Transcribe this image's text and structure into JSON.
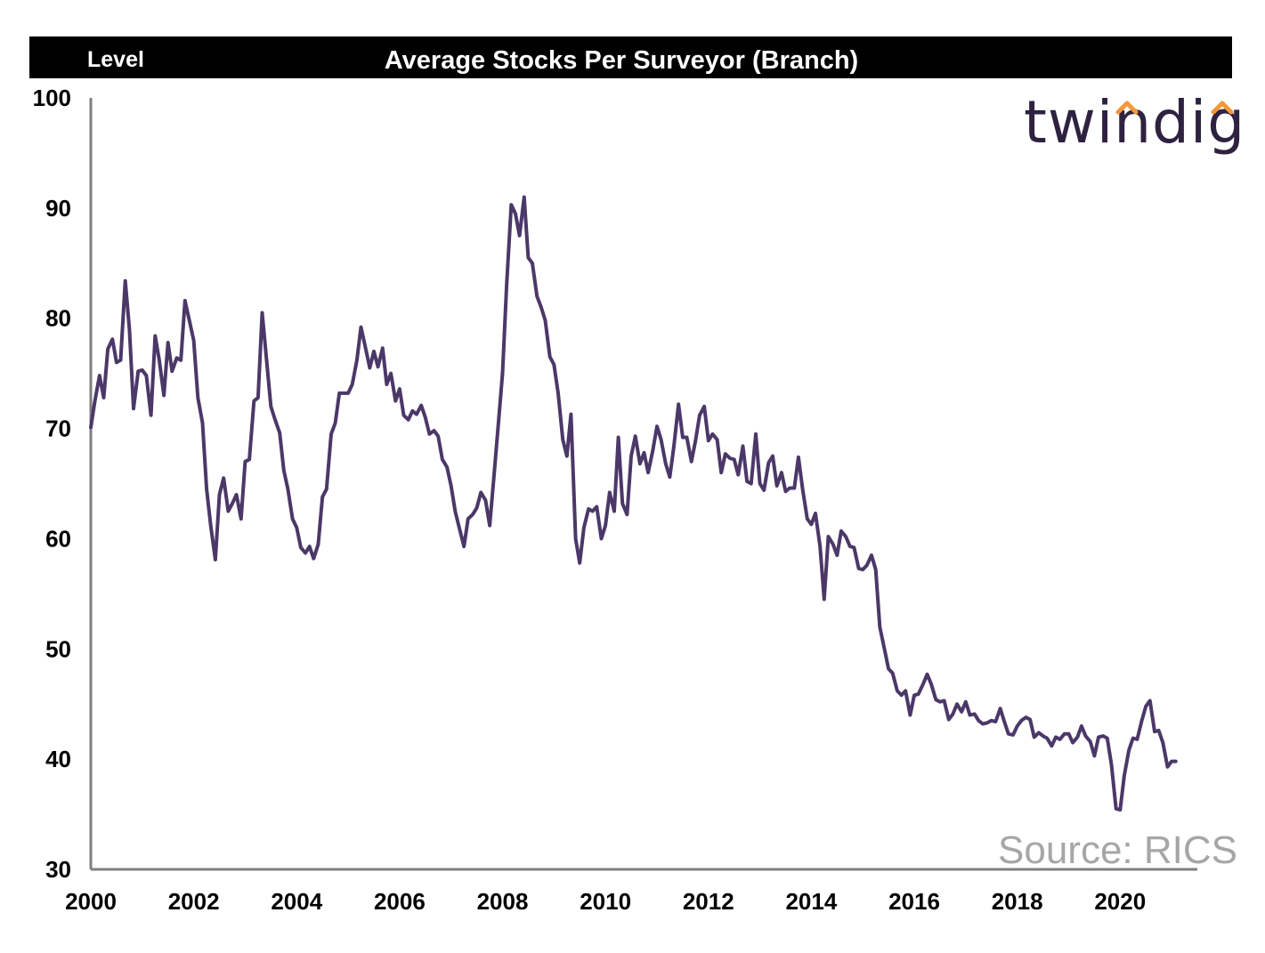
{
  "chart_data": {
    "type": "line",
    "title": "Average Stocks Per Surveyor (Branch)",
    "ylabel": "Level",
    "xlabel": "",
    "xlim": [
      2000,
      2021.5
    ],
    "ylim": [
      30,
      100
    ],
    "xticks": [
      2000,
      2002,
      2004,
      2006,
      2008,
      2010,
      2012,
      2014,
      2016,
      2018,
      2020
    ],
    "xtick_labels": [
      "2000",
      "2002",
      "2004",
      "2006",
      "2008",
      "2010",
      "2012",
      "2014",
      "2016",
      "2018",
      "2020"
    ],
    "yticks": [
      30,
      40,
      50,
      60,
      70,
      80,
      90,
      100
    ],
    "ytick_labels": [
      "30",
      "40",
      "50",
      "60",
      "70",
      "80",
      "90",
      "100"
    ],
    "grid": false,
    "legend": "none",
    "series": [
      {
        "color": "#4b3868",
        "points": [
          [
            2000.0,
            70.1
          ],
          [
            2000.08,
            72.5
          ],
          [
            2000.17,
            74.8
          ],
          [
            2000.25,
            72.8
          ],
          [
            2000.33,
            77.2
          ],
          [
            2000.42,
            78.1
          ],
          [
            2000.5,
            76.0
          ],
          [
            2000.58,
            76.2
          ],
          [
            2000.67,
            83.4
          ],
          [
            2000.75,
            79.0
          ],
          [
            2000.83,
            71.8
          ],
          [
            2000.92,
            75.2
          ],
          [
            2001.0,
            75.3
          ],
          [
            2001.08,
            74.8
          ],
          [
            2001.17,
            71.2
          ],
          [
            2001.25,
            78.4
          ],
          [
            2001.33,
            76.2
          ],
          [
            2001.42,
            73.0
          ],
          [
            2001.5,
            77.8
          ],
          [
            2001.58,
            75.2
          ],
          [
            2001.67,
            76.4
          ],
          [
            2001.75,
            76.2
          ],
          [
            2001.83,
            81.6
          ],
          [
            2001.92,
            79.7
          ],
          [
            2002.0,
            78.0
          ],
          [
            2002.08,
            72.8
          ],
          [
            2002.17,
            70.5
          ],
          [
            2002.25,
            64.5
          ],
          [
            2002.33,
            61.2
          ],
          [
            2002.42,
            58.1
          ],
          [
            2002.5,
            64.0
          ],
          [
            2002.58,
            65.5
          ],
          [
            2002.67,
            62.5
          ],
          [
            2002.75,
            63.2
          ],
          [
            2002.83,
            64.0
          ],
          [
            2002.92,
            61.8
          ],
          [
            2003.0,
            67.0
          ],
          [
            2003.08,
            67.2
          ],
          [
            2003.17,
            72.5
          ],
          [
            2003.25,
            72.8
          ],
          [
            2003.33,
            80.5
          ],
          [
            2003.42,
            76.0
          ],
          [
            2003.5,
            72.0
          ],
          [
            2003.58,
            70.8
          ],
          [
            2003.67,
            69.6
          ],
          [
            2003.75,
            66.2
          ],
          [
            2003.83,
            64.5
          ],
          [
            2003.92,
            61.8
          ],
          [
            2004.0,
            61.0
          ],
          [
            2004.08,
            59.2
          ],
          [
            2004.17,
            58.7
          ],
          [
            2004.25,
            59.3
          ],
          [
            2004.33,
            58.2
          ],
          [
            2004.42,
            59.5
          ],
          [
            2004.5,
            63.8
          ],
          [
            2004.58,
            64.5
          ],
          [
            2004.67,
            69.5
          ],
          [
            2004.75,
            70.5
          ],
          [
            2004.83,
            73.2
          ],
          [
            2004.92,
            73.2
          ],
          [
            2005.0,
            73.2
          ],
          [
            2005.08,
            74.0
          ],
          [
            2005.17,
            76.2
          ],
          [
            2005.25,
            79.2
          ],
          [
            2005.33,
            77.5
          ],
          [
            2005.42,
            75.5
          ],
          [
            2005.5,
            77.0
          ],
          [
            2005.58,
            75.6
          ],
          [
            2005.67,
            77.3
          ],
          [
            2005.75,
            74.0
          ],
          [
            2005.83,
            75.0
          ],
          [
            2005.92,
            72.5
          ],
          [
            2006.0,
            73.6
          ],
          [
            2006.08,
            71.2
          ],
          [
            2006.17,
            70.8
          ],
          [
            2006.25,
            71.6
          ],
          [
            2006.33,
            71.3
          ],
          [
            2006.42,
            72.1
          ],
          [
            2006.5,
            71.0
          ],
          [
            2006.58,
            69.5
          ],
          [
            2006.67,
            69.8
          ],
          [
            2006.75,
            69.3
          ],
          [
            2006.83,
            67.2
          ],
          [
            2006.92,
            66.5
          ],
          [
            2007.0,
            64.8
          ],
          [
            2007.08,
            62.5
          ],
          [
            2007.17,
            60.8
          ],
          [
            2007.25,
            59.3
          ],
          [
            2007.33,
            61.8
          ],
          [
            2007.42,
            62.2
          ],
          [
            2007.5,
            62.8
          ],
          [
            2007.58,
            64.2
          ],
          [
            2007.67,
            63.5
          ],
          [
            2007.75,
            61.2
          ],
          [
            2007.83,
            65.5
          ],
          [
            2007.92,
            70.5
          ],
          [
            2008.0,
            75.0
          ],
          [
            2008.08,
            83.0
          ],
          [
            2008.17,
            90.3
          ],
          [
            2008.25,
            89.5
          ],
          [
            2008.33,
            87.5
          ],
          [
            2008.42,
            91.0
          ],
          [
            2008.5,
            85.5
          ],
          [
            2008.58,
            85.0
          ],
          [
            2008.67,
            82.0
          ],
          [
            2008.75,
            81.0
          ],
          [
            2008.83,
            79.8
          ],
          [
            2008.92,
            76.5
          ],
          [
            2009.0,
            75.8
          ],
          [
            2009.08,
            73.2
          ],
          [
            2009.17,
            69.0
          ],
          [
            2009.25,
            67.5
          ],
          [
            2009.33,
            71.3
          ],
          [
            2009.42,
            60.0
          ],
          [
            2009.5,
            57.8
          ],
          [
            2009.58,
            61.0
          ],
          [
            2009.67,
            62.7
          ],
          [
            2009.75,
            62.5
          ],
          [
            2009.83,
            62.9
          ],
          [
            2009.92,
            60.0
          ],
          [
            2010.0,
            61.2
          ],
          [
            2010.08,
            64.2
          ],
          [
            2010.17,
            62.5
          ],
          [
            2010.25,
            69.2
          ],
          [
            2010.33,
            63.2
          ],
          [
            2010.42,
            62.2
          ],
          [
            2010.5,
            67.5
          ],
          [
            2010.58,
            69.3
          ],
          [
            2010.67,
            66.8
          ],
          [
            2010.75,
            67.8
          ],
          [
            2010.83,
            66.0
          ],
          [
            2010.92,
            68.0
          ],
          [
            2011.0,
            70.2
          ],
          [
            2011.08,
            69.0
          ],
          [
            2011.17,
            66.8
          ],
          [
            2011.25,
            65.6
          ],
          [
            2011.33,
            68.4
          ],
          [
            2011.42,
            72.2
          ],
          [
            2011.5,
            69.2
          ],
          [
            2011.58,
            69.2
          ],
          [
            2011.67,
            67.0
          ],
          [
            2011.75,
            68.9
          ],
          [
            2011.83,
            71.2
          ],
          [
            2011.92,
            72.0
          ],
          [
            2012.0,
            68.9
          ],
          [
            2012.08,
            69.5
          ],
          [
            2012.17,
            69.0
          ],
          [
            2012.25,
            66.0
          ],
          [
            2012.33,
            67.7
          ],
          [
            2012.42,
            67.3
          ],
          [
            2012.5,
            67.2
          ],
          [
            2012.58,
            65.8
          ],
          [
            2012.67,
            68.4
          ],
          [
            2012.75,
            65.2
          ],
          [
            2012.83,
            65.0
          ],
          [
            2012.92,
            69.5
          ],
          [
            2013.0,
            65.0
          ],
          [
            2013.08,
            64.4
          ],
          [
            2013.17,
            66.9
          ],
          [
            2013.25,
            67.5
          ],
          [
            2013.33,
            64.8
          ],
          [
            2013.42,
            66.0
          ],
          [
            2013.5,
            64.3
          ],
          [
            2013.58,
            64.6
          ],
          [
            2013.67,
            64.6
          ],
          [
            2013.75,
            67.4
          ],
          [
            2013.83,
            64.5
          ],
          [
            2013.92,
            61.8
          ],
          [
            2014.0,
            61.3
          ],
          [
            2014.08,
            62.3
          ],
          [
            2014.17,
            59.3
          ],
          [
            2014.25,
            54.5
          ],
          [
            2014.33,
            60.2
          ],
          [
            2014.42,
            59.5
          ],
          [
            2014.5,
            58.5
          ],
          [
            2014.58,
            60.7
          ],
          [
            2014.67,
            60.2
          ],
          [
            2014.75,
            59.3
          ],
          [
            2014.83,
            59.2
          ],
          [
            2014.92,
            57.3
          ],
          [
            2015.0,
            57.2
          ],
          [
            2015.08,
            57.6
          ],
          [
            2015.17,
            58.5
          ],
          [
            2015.25,
            57.2
          ],
          [
            2015.33,
            52.0
          ],
          [
            2015.42,
            50.0
          ],
          [
            2015.5,
            48.2
          ],
          [
            2015.58,
            47.8
          ],
          [
            2015.67,
            46.2
          ],
          [
            2015.75,
            45.8
          ],
          [
            2015.83,
            46.2
          ],
          [
            2015.92,
            44.0
          ],
          [
            2016.0,
            45.8
          ],
          [
            2016.08,
            45.9
          ],
          [
            2016.17,
            46.8
          ],
          [
            2016.25,
            47.7
          ],
          [
            2016.33,
            46.8
          ],
          [
            2016.42,
            45.4
          ],
          [
            2016.5,
            45.2
          ],
          [
            2016.58,
            45.3
          ],
          [
            2016.67,
            43.6
          ],
          [
            2016.75,
            44.1
          ],
          [
            2016.83,
            45.0
          ],
          [
            2016.92,
            44.3
          ],
          [
            2017.0,
            45.2
          ],
          [
            2017.08,
            44.0
          ],
          [
            2017.17,
            44.1
          ],
          [
            2017.25,
            43.5
          ],
          [
            2017.33,
            43.2
          ],
          [
            2017.42,
            43.3
          ],
          [
            2017.5,
            43.5
          ],
          [
            2017.58,
            43.4
          ],
          [
            2017.67,
            44.6
          ],
          [
            2017.75,
            43.4
          ],
          [
            2017.83,
            42.3
          ],
          [
            2017.92,
            42.2
          ],
          [
            2018.0,
            43.0
          ],
          [
            2018.08,
            43.5
          ],
          [
            2018.17,
            43.8
          ],
          [
            2018.25,
            43.6
          ],
          [
            2018.33,
            42.0
          ],
          [
            2018.42,
            42.4
          ],
          [
            2018.5,
            42.1
          ],
          [
            2018.58,
            41.9
          ],
          [
            2018.67,
            41.2
          ],
          [
            2018.75,
            42.0
          ],
          [
            2018.83,
            41.8
          ],
          [
            2018.92,
            42.3
          ],
          [
            2019.0,
            42.3
          ],
          [
            2019.08,
            41.5
          ],
          [
            2019.17,
            42.0
          ],
          [
            2019.25,
            43.0
          ],
          [
            2019.33,
            42.1
          ],
          [
            2019.42,
            41.6
          ],
          [
            2019.5,
            40.3
          ],
          [
            2019.58,
            42.0
          ],
          [
            2019.67,
            42.1
          ],
          [
            2019.75,
            41.9
          ],
          [
            2019.83,
            39.5
          ],
          [
            2019.92,
            35.5
          ],
          [
            2020.0,
            35.4
          ],
          [
            2020.08,
            38.5
          ],
          [
            2020.17,
            40.8
          ],
          [
            2020.25,
            41.9
          ],
          [
            2020.33,
            41.8
          ],
          [
            2020.42,
            43.5
          ],
          [
            2020.5,
            44.8
          ],
          [
            2020.58,
            45.3
          ],
          [
            2020.67,
            42.5
          ],
          [
            2020.75,
            42.6
          ],
          [
            2020.83,
            41.5
          ],
          [
            2020.92,
            39.3
          ],
          [
            2021.0,
            39.8
          ],
          [
            2021.08,
            39.8
          ]
        ]
      }
    ]
  },
  "header": {
    "level_label": "Level",
    "title": "Average Stocks Per Surveyor (Branch)"
  },
  "branding": {
    "logo_text": "twindig",
    "logo_color": "#2e2240",
    "logo_accent_color": "#f2993a",
    "source_text": "Source: RICS",
    "source_color": "#a6a6a6"
  },
  "colors": {
    "header_bar": "#000000",
    "axis": "#7f7f7f",
    "line": "#4b3868"
  }
}
